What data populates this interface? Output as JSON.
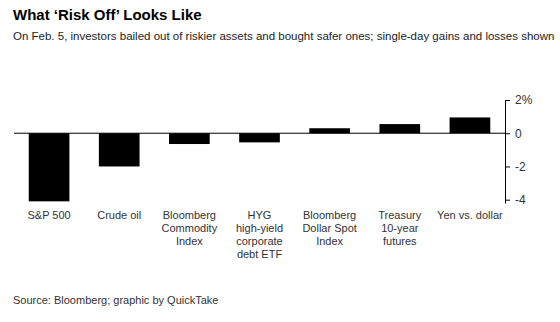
{
  "chart_data": {
    "type": "bar",
    "title": "What ‘Risk Off’ Looks Like",
    "subtitle": "On Feb. 5, investors bailed out of riskier assets and bought safer ones; single-day gains and losses shown",
    "categories": [
      "S&P 500",
      "Crude oil",
      "Bloomberg Commodity Index",
      "HYG high-yield corporate debt ETF",
      "Bloomberg Dollar Spot Index",
      "Treasury 10-year futures",
      "Yen vs. dollar"
    ],
    "values": [
      -4.1,
      -2.0,
      -0.65,
      -0.55,
      0.3,
      0.55,
      0.95
    ],
    "color": "#000000",
    "ylim": [
      -4.2,
      2
    ],
    "yticks": [
      {
        "value": 2,
        "label": "2%"
      },
      0,
      -2,
      -4
    ],
    "grid": false,
    "source": "Source: Bloomberg; graphic by QuickTake"
  }
}
